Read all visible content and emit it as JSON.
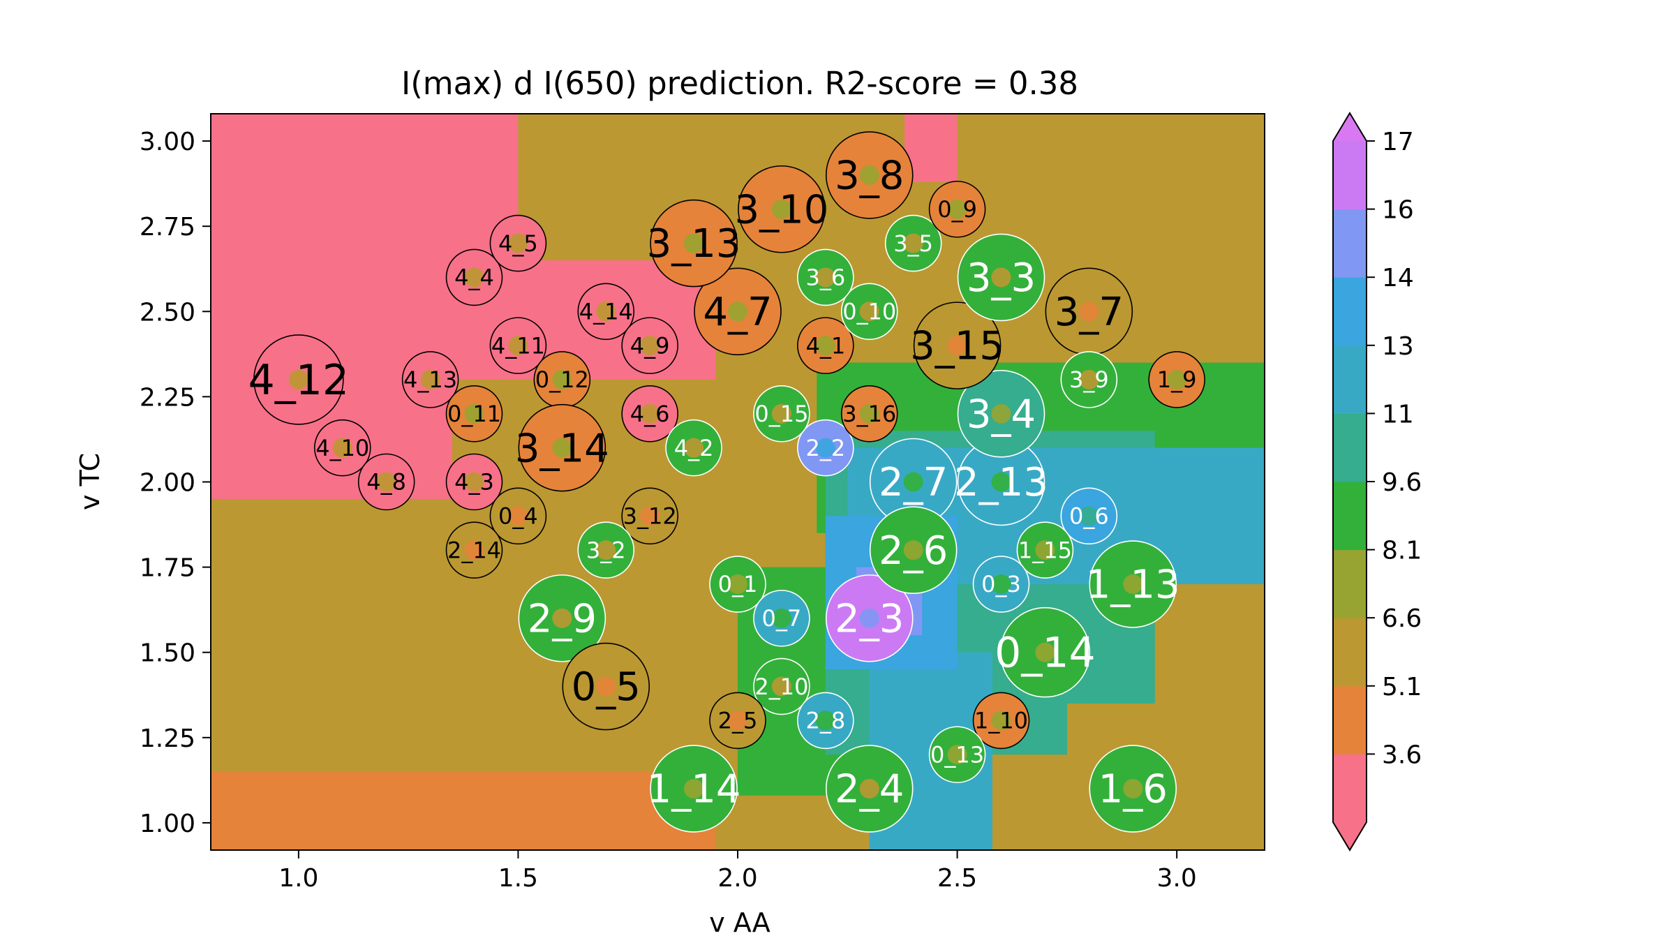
{
  "chart_data": {
    "type": "heatmap",
    "title": "I(max) d I(650) prediction. R2-score = 0.38",
    "xlabel": "v AA",
    "ylabel": "v TC",
    "xlim": [
      0.8,
      3.2
    ],
    "ylim": [
      0.92,
      3.08
    ],
    "xticks": [
      "1.0",
      "1.5",
      "2.0",
      "2.5",
      "3.0"
    ],
    "yticks": [
      "1.00",
      "1.25",
      "1.50",
      "1.75",
      "2.00",
      "2.25",
      "2.50",
      "2.75",
      "3.00"
    ],
    "colorbar": {
      "ticks": [
        "3.6",
        "5.1",
        "6.6",
        "8.1",
        "9.6",
        "11",
        "13",
        "14",
        "16",
        "17"
      ],
      "levels": [
        2.9,
        3.6,
        5.1,
        6.6,
        8.1,
        9.6,
        11.1,
        12.6,
        14.1,
        15.6,
        17.1,
        18.0
      ],
      "colors": [
        "#f77189",
        "#e5833a",
        "#bb9832",
        "#97a431",
        "#33b03a",
        "#35ad8e",
        "#38a9c5",
        "#3aa5df",
        "#8197f4",
        "#cc7af4",
        "#d979f2"
      ],
      "extend": "both"
    },
    "regions": [
      {
        "x": [
          0.8,
          1.5
        ],
        "y": [
          2.35,
          3.08
        ],
        "value": 3.0
      },
      {
        "x": [
          0.8,
          1.35
        ],
        "y": [
          1.95,
          2.4
        ],
        "value": 3.0
      },
      {
        "x": [
          1.3,
          1.95
        ],
        "y": [
          2.3,
          2.65
        ],
        "value": 3.0
      },
      {
        "x": [
          2.38,
          2.53
        ],
        "y": [
          2.88,
          3.08
        ],
        "value": 3.0
      },
      {
        "x": [
          2.0,
          2.28
        ],
        "y": [
          1.08,
          1.75
        ],
        "value": 9.0
      },
      {
        "x": [
          2.18,
          3.2
        ],
        "y": [
          1.85,
          2.35
        ],
        "value": 9.5
      },
      {
        "x": [
          2.2,
          2.95
        ],
        "y": [
          1.2,
          2.15
        ],
        "value": 10.5
      },
      {
        "x": [
          2.25,
          3.2
        ],
        "y": [
          1.7,
          2.1
        ],
        "value": 12.0
      },
      {
        "x": [
          2.3,
          2.58
        ],
        "y": [
          0.92,
          1.5
        ],
        "value": 11.2
      },
      {
        "x": [
          2.2,
          2.5
        ],
        "y": [
          1.45,
          1.9
        ],
        "value": 13.0
      },
      {
        "x": [
          2.27,
          2.42
        ],
        "y": [
          1.55,
          1.75
        ],
        "value": 14.5
      },
      {
        "x": [
          0.8,
          1.95
        ],
        "y": [
          0.92,
          1.15
        ],
        "value": 5.0
      },
      {
        "x": [
          2.75,
          3.2
        ],
        "y": [
          0.92,
          1.35
        ],
        "value": 5.5
      },
      {
        "x": [
          2.5,
          3.2
        ],
        "y": [
          2.88,
          3.08
        ],
        "value": 5.5
      }
    ],
    "points": [
      {
        "label": "4_12",
        "x": 1.0,
        "y": 2.3,
        "value": 3.0,
        "size": 3
      },
      {
        "label": "4_10",
        "x": 1.1,
        "y": 2.1,
        "value": 3.0,
        "size": 1
      },
      {
        "label": "4_8",
        "x": 1.2,
        "y": 2.0,
        "value": 3.0,
        "size": 1
      },
      {
        "label": "4_13",
        "x": 1.3,
        "y": 2.3,
        "value": 3.0,
        "size": 1
      },
      {
        "label": "4_4",
        "x": 1.4,
        "y": 2.6,
        "value": 3.0,
        "size": 1
      },
      {
        "label": "4_11",
        "x": 1.5,
        "y": 2.4,
        "value": 3.0,
        "size": 1
      },
      {
        "label": "4_5",
        "x": 1.5,
        "y": 2.7,
        "value": 3.0,
        "size": 1
      },
      {
        "label": "4_14",
        "x": 1.7,
        "y": 2.5,
        "value": 3.0,
        "size": 1
      },
      {
        "label": "4_9",
        "x": 1.8,
        "y": 2.4,
        "value": 3.0,
        "size": 1
      },
      {
        "label": "4_6",
        "x": 1.8,
        "y": 2.2,
        "value": 3.0,
        "size": 1
      },
      {
        "label": "4_3",
        "x": 1.4,
        "y": 2.0,
        "value": 3.0,
        "size": 1
      },
      {
        "label": "0_11",
        "x": 1.4,
        "y": 2.2,
        "value": 5.0,
        "size": 1
      },
      {
        "label": "0_12",
        "x": 1.6,
        "y": 2.3,
        "value": 5.0,
        "size": 1
      },
      {
        "label": "3_14",
        "x": 1.6,
        "y": 2.1,
        "value": 4.5,
        "size": 2
      },
      {
        "label": "4_2",
        "x": 1.9,
        "y": 2.1,
        "value": 8.5,
        "size": 1
      },
      {
        "label": "0_4",
        "x": 1.5,
        "y": 1.9,
        "value": 6.5,
        "size": 1
      },
      {
        "label": "3_12",
        "x": 1.8,
        "y": 1.9,
        "value": 6.5,
        "size": 1
      },
      {
        "label": "2_14",
        "x": 1.4,
        "y": 1.8,
        "value": 6.5,
        "size": 1
      },
      {
        "label": "3_2",
        "x": 1.7,
        "y": 1.8,
        "value": 8.5,
        "size": 1
      },
      {
        "label": "2_9",
        "x": 1.6,
        "y": 1.6,
        "value": 8.5,
        "size": 2
      },
      {
        "label": "0_5",
        "x": 1.7,
        "y": 1.4,
        "value": 6.5,
        "size": 2
      },
      {
        "label": "1_14",
        "x": 1.9,
        "y": 1.1,
        "value": 9.0,
        "size": 2
      },
      {
        "label": "0_1",
        "x": 2.0,
        "y": 1.7,
        "value": 9.5,
        "size": 1
      },
      {
        "label": "0_7",
        "x": 2.1,
        "y": 1.6,
        "value": 11.5,
        "size": 1
      },
      {
        "label": "2_10",
        "x": 2.1,
        "y": 1.4,
        "value": 8.5,
        "size": 1
      },
      {
        "label": "2_5",
        "x": 2.0,
        "y": 1.3,
        "value": 6.5,
        "size": 1
      },
      {
        "label": "2_8",
        "x": 2.2,
        "y": 1.3,
        "value": 11.5,
        "size": 1
      },
      {
        "label": "2_4",
        "x": 2.3,
        "y": 1.1,
        "value": 8.5,
        "size": 2
      },
      {
        "label": "2_3",
        "x": 2.3,
        "y": 1.6,
        "value": 17.0,
        "size": 2
      },
      {
        "label": "2_2",
        "x": 2.2,
        "y": 2.1,
        "value": 15.0,
        "size": 1
      },
      {
        "label": "2_7",
        "x": 2.4,
        "y": 2.0,
        "value": 11.5,
        "size": 2
      },
      {
        "label": "2_6",
        "x": 2.4,
        "y": 1.8,
        "value": 9.0,
        "size": 2
      },
      {
        "label": "2_13",
        "x": 2.6,
        "y": 2.0,
        "value": 11.5,
        "size": 2
      },
      {
        "label": "0_6",
        "x": 2.8,
        "y": 1.9,
        "value": 13.0,
        "size": 1
      },
      {
        "label": "1_15",
        "x": 2.7,
        "y": 1.8,
        "value": 9.5,
        "size": 1
      },
      {
        "label": "0_3",
        "x": 2.6,
        "y": 1.7,
        "value": 11.5,
        "size": 1
      },
      {
        "label": "1_13",
        "x": 2.9,
        "y": 1.7,
        "value": 9.0,
        "size": 2
      },
      {
        "label": "0_14",
        "x": 2.7,
        "y": 1.5,
        "value": 9.0,
        "size": 3
      },
      {
        "label": "1_10",
        "x": 2.6,
        "y": 1.3,
        "value": 4.5,
        "size": 1
      },
      {
        "label": "0_13",
        "x": 2.5,
        "y": 1.2,
        "value": 9.0,
        "size": 1
      },
      {
        "label": "1_6",
        "x": 2.9,
        "y": 1.1,
        "value": 9.0,
        "size": 2
      },
      {
        "label": "0_15",
        "x": 2.1,
        "y": 2.2,
        "value": 8.5,
        "size": 1
      },
      {
        "label": "3_16",
        "x": 2.3,
        "y": 2.2,
        "value": 5.0,
        "size": 1
      },
      {
        "label": "3_4",
        "x": 2.6,
        "y": 2.2,
        "value": 10.0,
        "size": 2
      },
      {
        "label": "4_1",
        "x": 2.2,
        "y": 2.4,
        "value": 4.5,
        "size": 1
      },
      {
        "label": "0_10",
        "x": 2.3,
        "y": 2.5,
        "value": 8.5,
        "size": 1
      },
      {
        "label": "3_15",
        "x": 2.5,
        "y": 2.4,
        "value": 6.5,
        "size": 2
      },
      {
        "label": "3_6",
        "x": 2.2,
        "y": 2.6,
        "value": 8.5,
        "size": 1
      },
      {
        "label": "4_7",
        "x": 2.0,
        "y": 2.5,
        "value": 4.0,
        "size": 2
      },
      {
        "label": "3_13",
        "x": 1.9,
        "y": 2.7,
        "value": 4.5,
        "size": 2
      },
      {
        "label": "3_10",
        "x": 2.1,
        "y": 2.8,
        "value": 5.0,
        "size": 2
      },
      {
        "label": "3_8",
        "x": 2.3,
        "y": 2.9,
        "value": 4.0,
        "size": 2
      },
      {
        "label": "3_5",
        "x": 2.4,
        "y": 2.7,
        "value": 8.5,
        "size": 1
      },
      {
        "label": "0_9",
        "x": 2.5,
        "y": 2.8,
        "value": 4.0,
        "size": 1
      },
      {
        "label": "3_3",
        "x": 2.6,
        "y": 2.6,
        "value": 8.5,
        "size": 2
      },
      {
        "label": "3_7",
        "x": 2.8,
        "y": 2.5,
        "value": 6.5,
        "size": 2
      },
      {
        "label": "3_9",
        "x": 2.8,
        "y": 2.3,
        "value": 8.5,
        "size": 1
      },
      {
        "label": "1_9",
        "x": 3.0,
        "y": 2.3,
        "value": 5.0,
        "size": 1
      }
    ]
  }
}
